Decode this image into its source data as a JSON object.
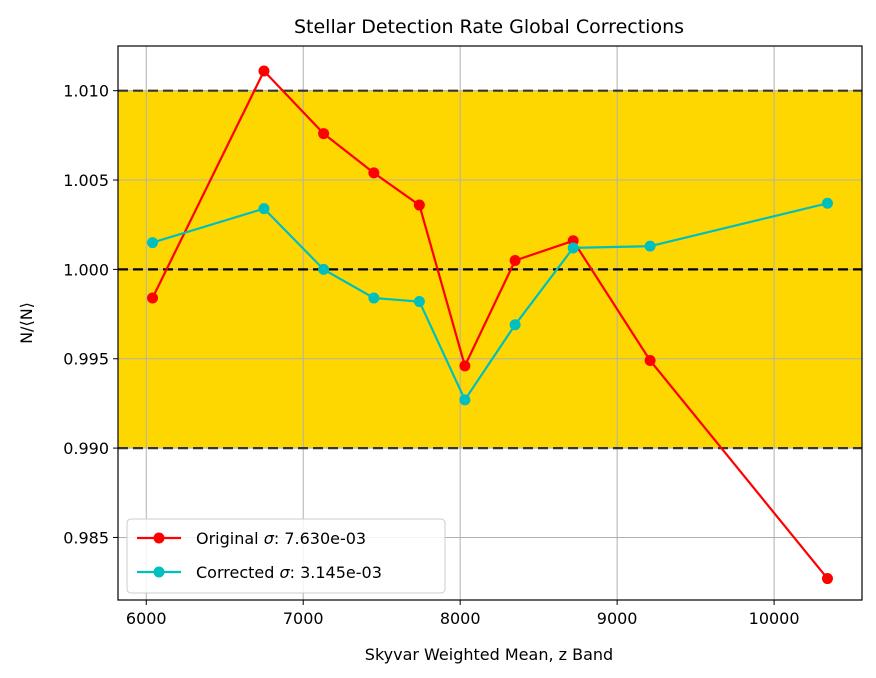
{
  "chart_data": {
    "type": "line",
    "title": "Stellar Detection Rate Global Corrections",
    "xlabel": "Skyvar Weighted Mean, z Band",
    "ylabel": "N/⟨N⟩",
    "xlim": [
      5820,
      10560
    ],
    "ylim": [
      0.9815,
      1.0125
    ],
    "x_ticks": [
      6000,
      7000,
      8000,
      9000,
      10000
    ],
    "x_tick_labels": [
      "6000",
      "7000",
      "8000",
      "9000",
      "10000"
    ],
    "y_ticks": [
      0.985,
      0.99,
      0.995,
      1.0,
      1.005,
      1.01
    ],
    "y_tick_labels": [
      "0.985",
      "0.990",
      "0.995",
      "1.000",
      "1.005",
      "1.010"
    ],
    "grid": true,
    "legend_position": "lower-left",
    "band": {
      "ymin": 0.99,
      "ymax": 1.01,
      "color": "#FFD700"
    },
    "reference_lines": [
      {
        "y": 0.99,
        "style": "dashed",
        "color": "#333333"
      },
      {
        "y": 1.0,
        "style": "dashed",
        "color": "#000000"
      },
      {
        "y": 1.01,
        "style": "dashed",
        "color": "#333333"
      }
    ],
    "series": [
      {
        "name": "Original σ: 7.630e-03",
        "label_prefix": "Original ",
        "label_symbol": "σ",
        "label_value": ": 7.630e-03",
        "color": "#FF0000",
        "x": [
          6040,
          6750,
          7130,
          7450,
          7740,
          8030,
          8350,
          8720,
          9210,
          10340
        ],
        "y": [
          0.9984,
          1.0111,
          1.0076,
          1.0054,
          1.0036,
          0.9946,
          1.0005,
          1.0016,
          0.9949,
          0.9827
        ]
      },
      {
        "name": "Corrected σ: 3.145e-03",
        "label_prefix": "Corrected ",
        "label_symbol": "σ",
        "label_value": ": 3.145e-03",
        "color": "#00BFBF",
        "x": [
          6040,
          6750,
          7130,
          7450,
          7740,
          8030,
          8350,
          8720,
          9210,
          10340
        ],
        "y": [
          1.0015,
          1.0034,
          1.0,
          0.9984,
          0.9982,
          0.9927,
          0.9969,
          1.0012,
          1.0013,
          1.0037
        ]
      }
    ]
  }
}
